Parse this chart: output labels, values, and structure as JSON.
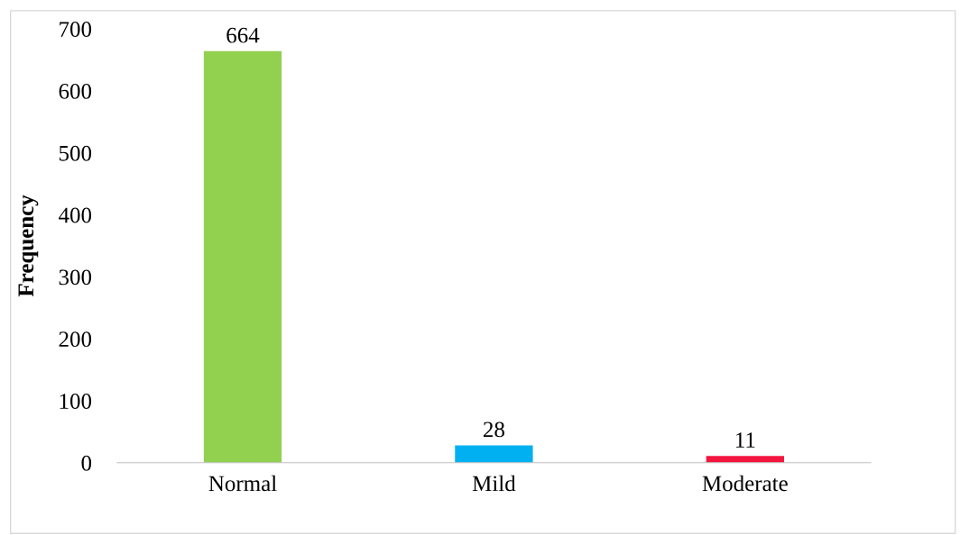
{
  "chart_data": {
    "type": "bar",
    "ylabel": "Frequency",
    "categories": [
      "Normal",
      "Mild",
      "Moderate"
    ],
    "values": [
      664,
      28,
      11
    ],
    "colors": [
      "#92d050",
      "#00b0f0",
      "#f5163f"
    ],
    "ylim": [
      0,
      700
    ],
    "yticks": [
      0,
      100,
      200,
      300,
      400,
      500,
      600,
      700
    ],
    "data_labels": true,
    "grid": false,
    "legend": false
  }
}
